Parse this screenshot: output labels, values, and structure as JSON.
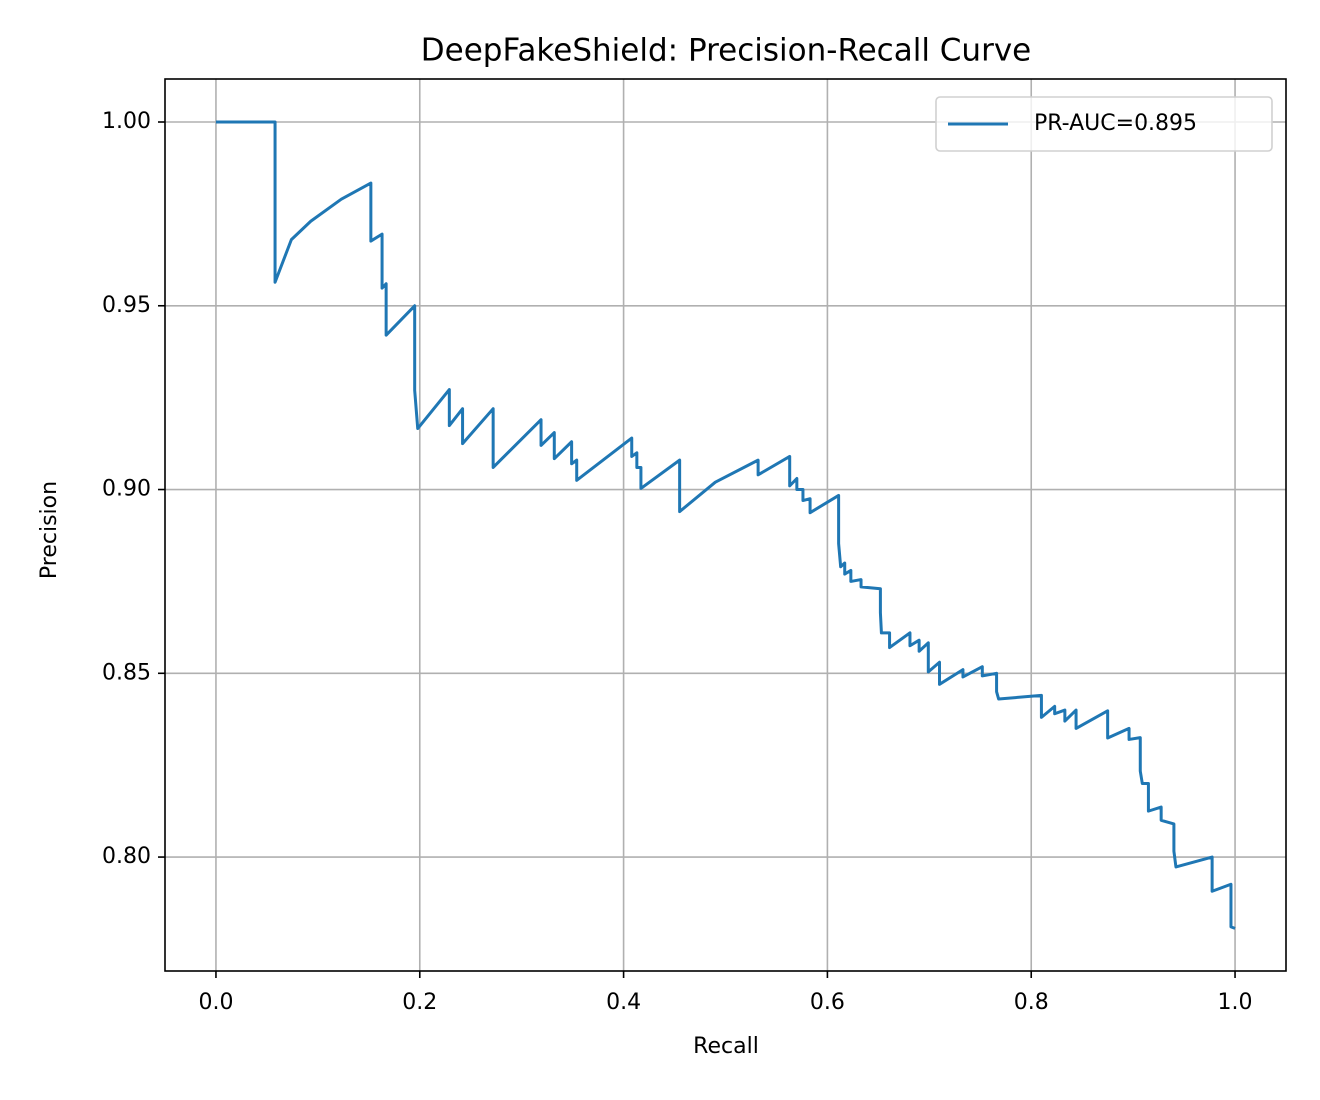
{
  "chart_data": {
    "type": "line",
    "title": "DeepFakeShield: Precision-Recall Curve",
    "x_label": "Recall",
    "y_label": "Precision",
    "x": [
      0,
      0.058,
      0.058,
      0.074,
      0.093,
      0.123,
      0.152,
      0.152,
      0.163,
      0.163,
      0.167,
      0.167,
      0.195,
      0.195,
      0.198,
      0.229,
      0.229,
      0.242,
      0.242,
      0.272,
      0.272,
      0.319,
      0.319,
      0.332,
      0.332,
      0.349,
      0.349,
      0.354,
      0.354,
      0.408,
      0.408,
      0.413,
      0.413,
      0.417,
      0.417,
      0.455,
      0.455,
      0.49,
      0.532,
      0.532,
      0.563,
      0.563,
      0.57,
      0.57,
      0.576,
      0.576,
      0.583,
      0.583,
      0.611,
      0.611,
      0.613,
      0.617,
      0.617,
      0.623,
      0.623,
      0.633,
      0.633,
      0.652,
      0.652,
      0.653,
      0.661,
      0.661,
      0.681,
      0.681,
      0.69,
      0.69,
      0.699,
      0.699,
      0.71,
      0.71,
      0.733,
      0.733,
      0.752,
      0.752,
      0.766,
      0.766,
      0.768,
      0.81,
      0.81,
      0.823,
      0.823,
      0.833,
      0.833,
      0.844,
      0.844,
      0.875,
      0.875,
      0.896,
      0.896,
      0.907,
      0.907,
      0.909,
      0.915,
      0.915,
      0.9275,
      0.9275,
      0.94,
      0.94,
      0.942,
      0.9775,
      0.9775,
      0.996,
      0.996,
      1.0
    ],
    "series": [
      {
        "name": "PR-AUC=0.895",
        "color": "#1f77b4",
        "values": [
          1.0,
          1.0,
          0.9564,
          0.968,
          0.973,
          0.979,
          0.9834,
          0.9676,
          0.9695,
          0.9548,
          0.956,
          0.942,
          0.95,
          0.927,
          0.9166,
          0.9272,
          0.9174,
          0.922,
          0.9125,
          0.922,
          0.906,
          0.919,
          0.912,
          0.9155,
          0.9084,
          0.913,
          0.907,
          0.908,
          0.9025,
          0.914,
          0.909,
          0.91,
          0.906,
          0.906,
          0.9003,
          0.908,
          0.894,
          0.902,
          0.908,
          0.904,
          0.909,
          0.901,
          0.903,
          0.9,
          0.9,
          0.897,
          0.8975,
          0.8937,
          0.8984,
          0.8853,
          0.879,
          0.88,
          0.877,
          0.878,
          0.875,
          0.8755,
          0.8735,
          0.873,
          0.8665,
          0.861,
          0.861,
          0.857,
          0.861,
          0.8575,
          0.859,
          0.856,
          0.8583,
          0.8504,
          0.853,
          0.847,
          0.851,
          0.849,
          0.8518,
          0.8493,
          0.85,
          0.845,
          0.843,
          0.844,
          0.838,
          0.841,
          0.839,
          0.84,
          0.837,
          0.84,
          0.835,
          0.8398,
          0.8324,
          0.835,
          0.832,
          0.8325,
          0.8234,
          0.82,
          0.82,
          0.8125,
          0.8136,
          0.81,
          0.809,
          0.8016,
          0.7973,
          0.8,
          0.7907,
          0.7926,
          0.781,
          0.7806
        ]
      }
    ],
    "xlim": [
      -0.05,
      1.05
    ],
    "xticks": [
      {
        "value": 0,
        "label": "0.0"
      },
      {
        "value": 0.2,
        "label": "0.2"
      },
      {
        "value": 0.4,
        "label": "0.4"
      },
      {
        "value": 0.6,
        "label": "0.6"
      },
      {
        "value": 0.8,
        "label": "0.8"
      },
      {
        "value": 1,
        "label": "1.0"
      }
    ],
    "ylim": [
      0.769,
      1.0117
    ],
    "yticks": [
      {
        "value": 0.8,
        "label": "0.80"
      },
      {
        "value": 0.85,
        "label": "0.85"
      },
      {
        "value": 0.9,
        "label": "0.90"
      },
      {
        "value": 0.95,
        "label": "0.95"
      },
      {
        "value": 1,
        "label": "1.00"
      }
    ],
    "grid": true,
    "legend": "upper right"
  }
}
